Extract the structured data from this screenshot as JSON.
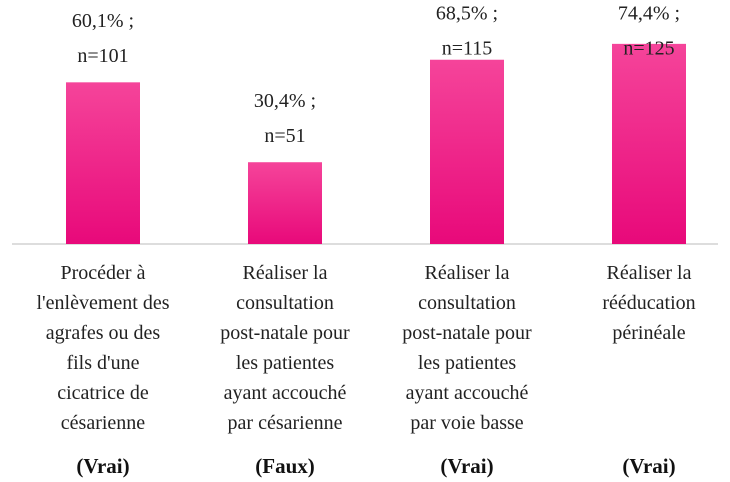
{
  "chart_data": {
    "type": "bar",
    "categories": [
      "Procéder à\nl'enlèvement des\nagrafes ou des\nfils d'une\ncicatrice de\ncésarienne",
      "Réaliser la\nconsultation\npost-natale pour\nles patientes\nayant accouché\npar césarienne",
      "Réaliser la\nconsultation\npost-natale pour\nles patientes\nayant accouché\npar voie basse",
      "Réaliser la\nrééducation\npérinéale"
    ],
    "verdicts": [
      "(Vrai)",
      "(Faux)",
      "(Vrai)",
      "(Vrai)"
    ],
    "values": [
      60.1,
      30.4,
      68.5,
      74.4
    ],
    "value_labels": [
      "60,1% ;",
      "30,4% ;",
      "68,5% ;",
      "74,4% ;"
    ],
    "n_labels": [
      "n=101",
      "n=51",
      "n=115",
      "n=125"
    ],
    "color": "#e8097a"
  }
}
